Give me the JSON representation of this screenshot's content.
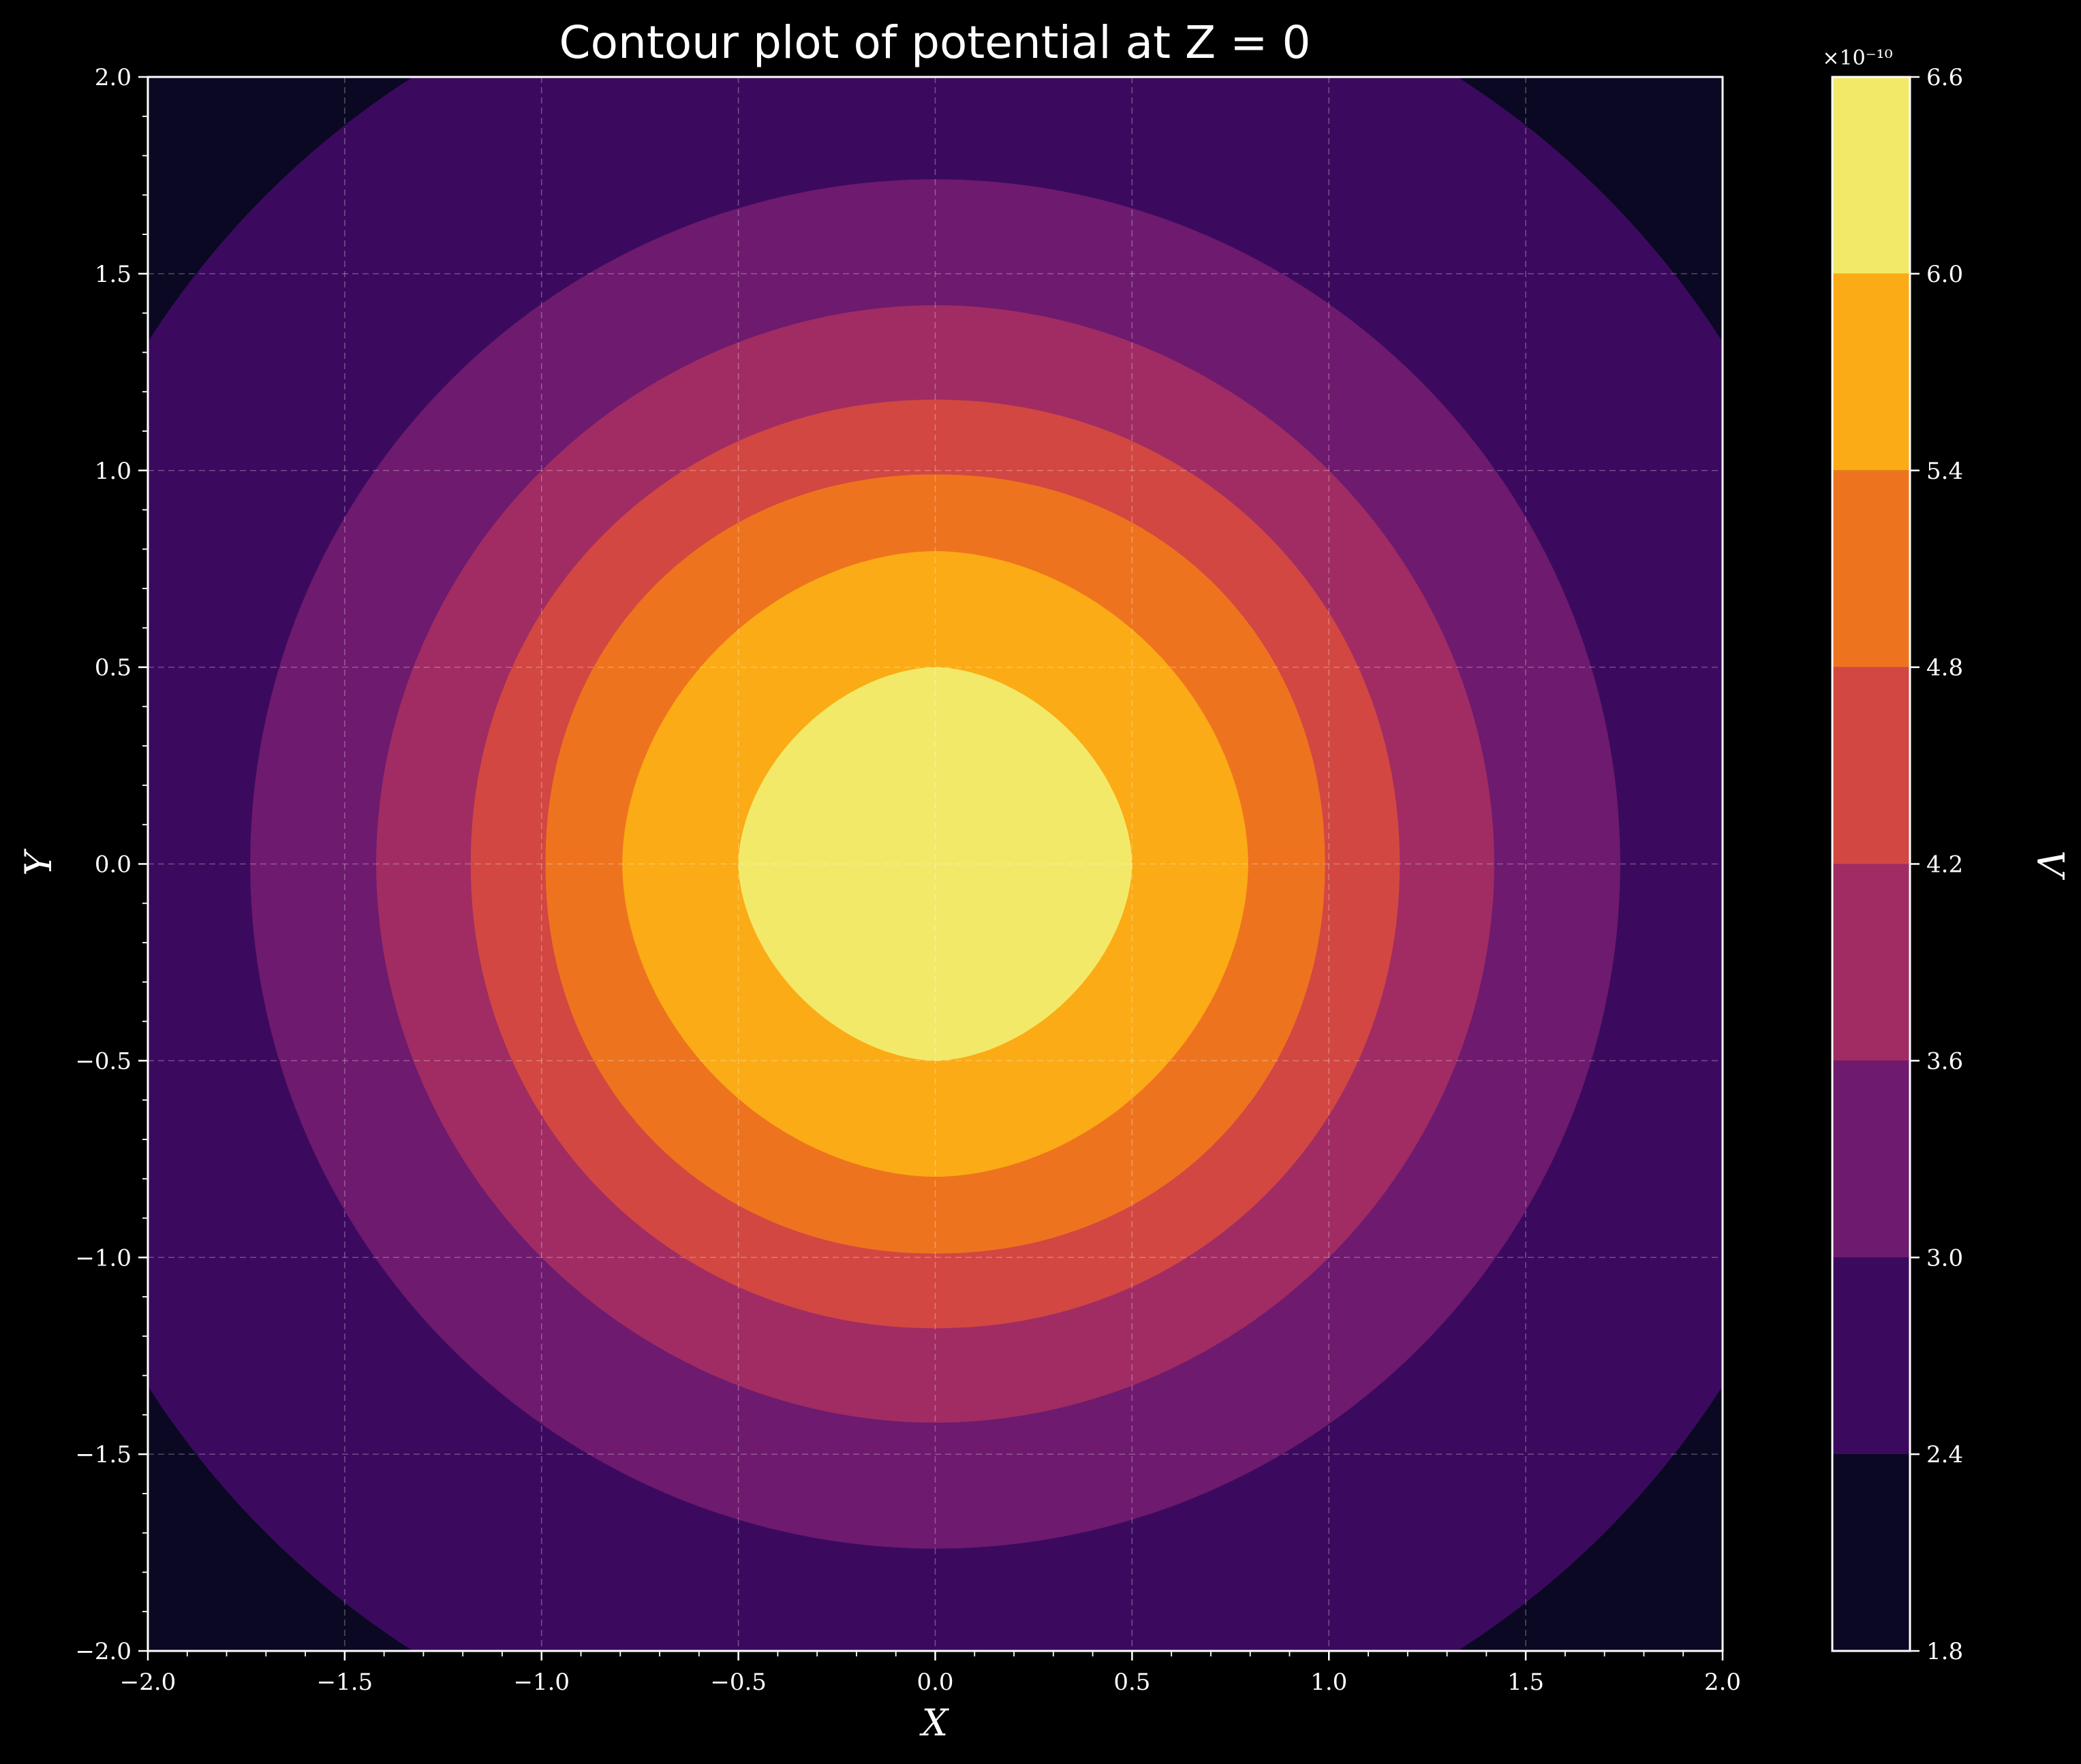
{
  "chart_data": {
    "type": "contour",
    "title": "Contour plot of potential at Z = 0",
    "xlabel": "X",
    "ylabel": "Y",
    "xlim": [
      -2.0,
      2.0
    ],
    "ylim": [
      -2.0,
      2.0
    ],
    "x_ticks": [
      "−2.0",
      "−1.5",
      "−1.0",
      "−0.5",
      "0.0",
      "0.5",
      "1.0",
      "1.5",
      "2.0"
    ],
    "y_ticks": [
      "−2.0",
      "−1.5",
      "−1.0",
      "−0.5",
      "0.0",
      "0.5",
      "1.0",
      "1.5",
      "2.0"
    ],
    "grid": true,
    "colormap": "inferno",
    "colorbar": {
      "label": "V",
      "exponent": "×10⁻¹⁰",
      "levels": [
        1.8,
        2.4,
        3.0,
        3.6,
        4.2,
        4.8,
        5.4,
        6.0,
        6.6
      ],
      "tick_labels": [
        "1.8",
        "2.4",
        "3.0",
        "3.6",
        "4.2",
        "4.8",
        "5.4",
        "6.0",
        "6.6"
      ],
      "band_colors": [
        "#0a0822",
        "#3b0a5e",
        "#6e1a6e",
        "#a02c63",
        "#d24742",
        "#ee731f",
        "#fbab15",
        "#f3e969"
      ]
    },
    "contour_bands": [
      {
        "level": 1.8,
        "color": "#0a0822",
        "half_width_axis": 10.0,
        "half_width_diag": 10.0
      },
      {
        "level": 2.4,
        "color": "#3b0a5e",
        "half_width_axis": 2.37,
        "half_width_diag": 1.7
      },
      {
        "level": 3.0,
        "color": "#6e1a6e",
        "half_width_axis": 1.74,
        "half_width_diag": 1.23
      },
      {
        "level": 3.6,
        "color": "#a02c63",
        "half_width_axis": 1.42,
        "half_width_diag": 1.0
      },
      {
        "level": 4.2,
        "color": "#d24742",
        "half_width_axis": 1.18,
        "half_width_diag": 0.84
      },
      {
        "level": 4.8,
        "color": "#ee731f",
        "half_width_axis": 0.99,
        "half_width_diag": 0.71
      },
      {
        "level": 5.4,
        "color": "#fbab15",
        "half_width_axis": 0.795,
        "half_width_diag": 0.55
      },
      {
        "level": 6.0,
        "color": "#f3e969",
        "half_width_axis": 0.5,
        "half_width_diag": 0.34
      }
    ]
  }
}
